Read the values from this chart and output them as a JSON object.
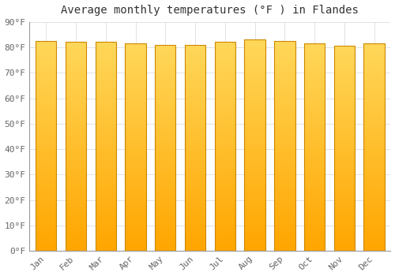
{
  "title": "Average monthly temperatures (°F ) in Flandes",
  "months": [
    "Jan",
    "Feb",
    "Mar",
    "Apr",
    "May",
    "Jun",
    "Jul",
    "Aug",
    "Sep",
    "Oct",
    "Nov",
    "Dec"
  ],
  "values": [
    82.5,
    82.0,
    82.0,
    81.5,
    81.0,
    81.0,
    82.0,
    83.0,
    82.5,
    81.5,
    80.5,
    81.5
  ],
  "bar_color_top": "#FFD060",
  "bar_color_bottom": "#FFA500",
  "bar_edge_color": "#CC8800",
  "background_color": "#ffffff",
  "plot_bg_color": "#ffffff",
  "ylim": [
    0,
    90
  ],
  "yticks": [
    0,
    10,
    20,
    30,
    40,
    50,
    60,
    70,
    80,
    90
  ],
  "ytick_labels": [
    "0°F",
    "10°F",
    "20°F",
    "30°F",
    "40°F",
    "50°F",
    "60°F",
    "70°F",
    "80°F",
    "90°F"
  ],
  "title_fontsize": 10,
  "tick_fontsize": 8,
  "grid_color": "#dddddd",
  "tick_color": "#666666"
}
